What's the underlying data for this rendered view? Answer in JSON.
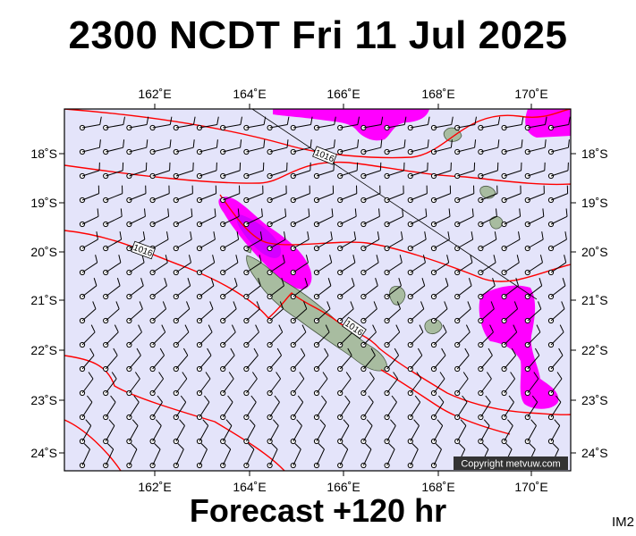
{
  "title": "2300 NCDT Fri 11 Jul 2025",
  "forecast": "Forecast +120 hr",
  "image_tag": "IM2",
  "copyright": "Copyright metvuw.com",
  "lon_ticks": [
    "162˚E",
    "164˚E",
    "166˚E",
    "168˚E",
    "170˚E"
  ],
  "lat_ticks": [
    "18˚S",
    "19˚S",
    "20˚S",
    "21˚S",
    "22˚S",
    "23˚S",
    "24˚S"
  ],
  "isobar_labels": [
    "1016",
    "1016",
    "1016"
  ],
  "colors": {
    "ocean": "#e4e4fa",
    "isobar": "#ff0000",
    "rain_light": "#ff00ff",
    "rain_heavy": "#d400ff",
    "land": "#a8bca0",
    "wind": "#000000"
  }
}
